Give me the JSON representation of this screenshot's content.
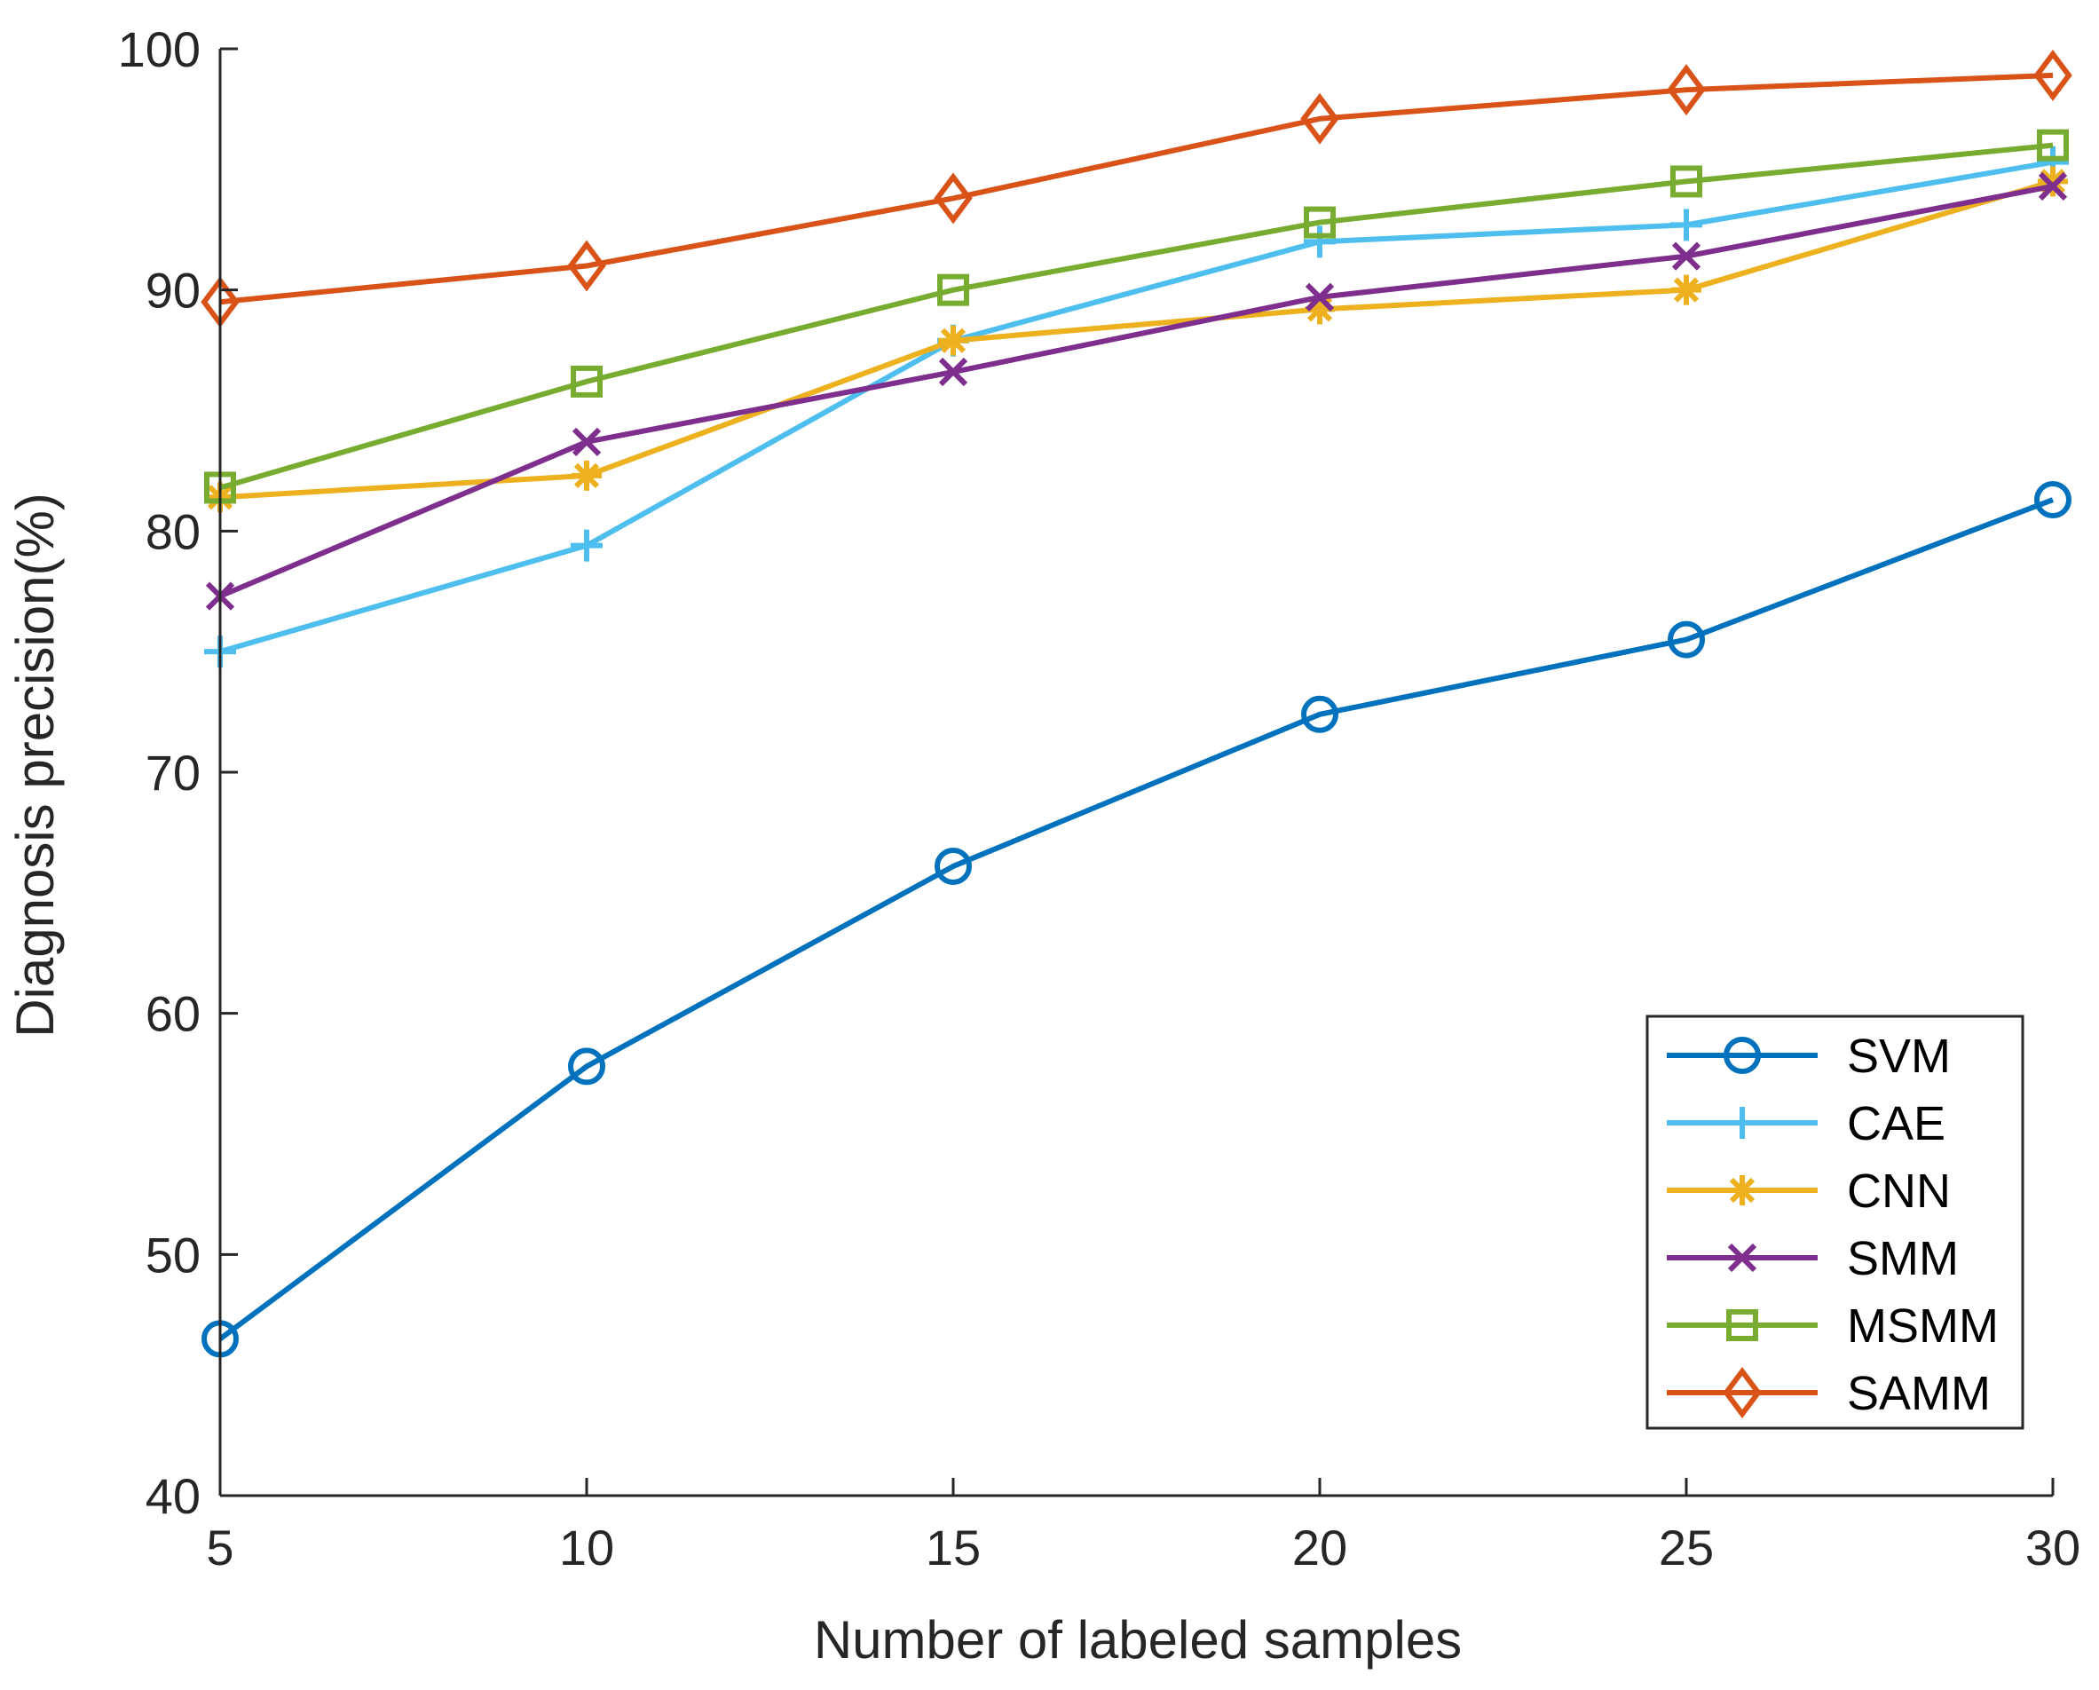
{
  "chart_data": {
    "type": "line",
    "title": "",
    "xlabel": "Number of labeled samples",
    "ylabel": "Diagnosis precision(%)",
    "x": [
      5,
      10,
      15,
      20,
      25,
      30
    ],
    "xlim": [
      5,
      30
    ],
    "ylim": [
      40,
      100
    ],
    "xticks": [
      5,
      10,
      15,
      20,
      25,
      30
    ],
    "yticks": [
      40,
      50,
      60,
      70,
      80,
      90,
      100
    ],
    "grid": false,
    "legend_position": "bottom-right",
    "series": [
      {
        "name": "SVM",
        "color": "#0072BD",
        "marker": "circle",
        "values": [
          46.5,
          57.8,
          66.1,
          72.4,
          75.5,
          81.3
        ]
      },
      {
        "name": "CAE",
        "color": "#4DBEEE",
        "marker": "plus",
        "values": [
          75.0,
          79.4,
          87.9,
          92.0,
          92.7,
          95.3
        ]
      },
      {
        "name": "CNN",
        "color": "#EDB120",
        "marker": "asterisk",
        "values": [
          81.4,
          82.3,
          87.9,
          89.2,
          90.0,
          94.5
        ]
      },
      {
        "name": "SMM",
        "color": "#7E2F8E",
        "marker": "x",
        "values": [
          77.3,
          83.7,
          86.6,
          89.7,
          91.4,
          94.3
        ]
      },
      {
        "name": "MSMM",
        "color": "#77AC30",
        "marker": "square",
        "values": [
          81.8,
          86.2,
          90.0,
          92.8,
          94.5,
          96.0
        ]
      },
      {
        "name": "SAMM",
        "color": "#D95319",
        "marker": "diamond",
        "values": [
          89.5,
          91.0,
          93.8,
          97.1,
          98.3,
          98.9
        ]
      }
    ]
  }
}
